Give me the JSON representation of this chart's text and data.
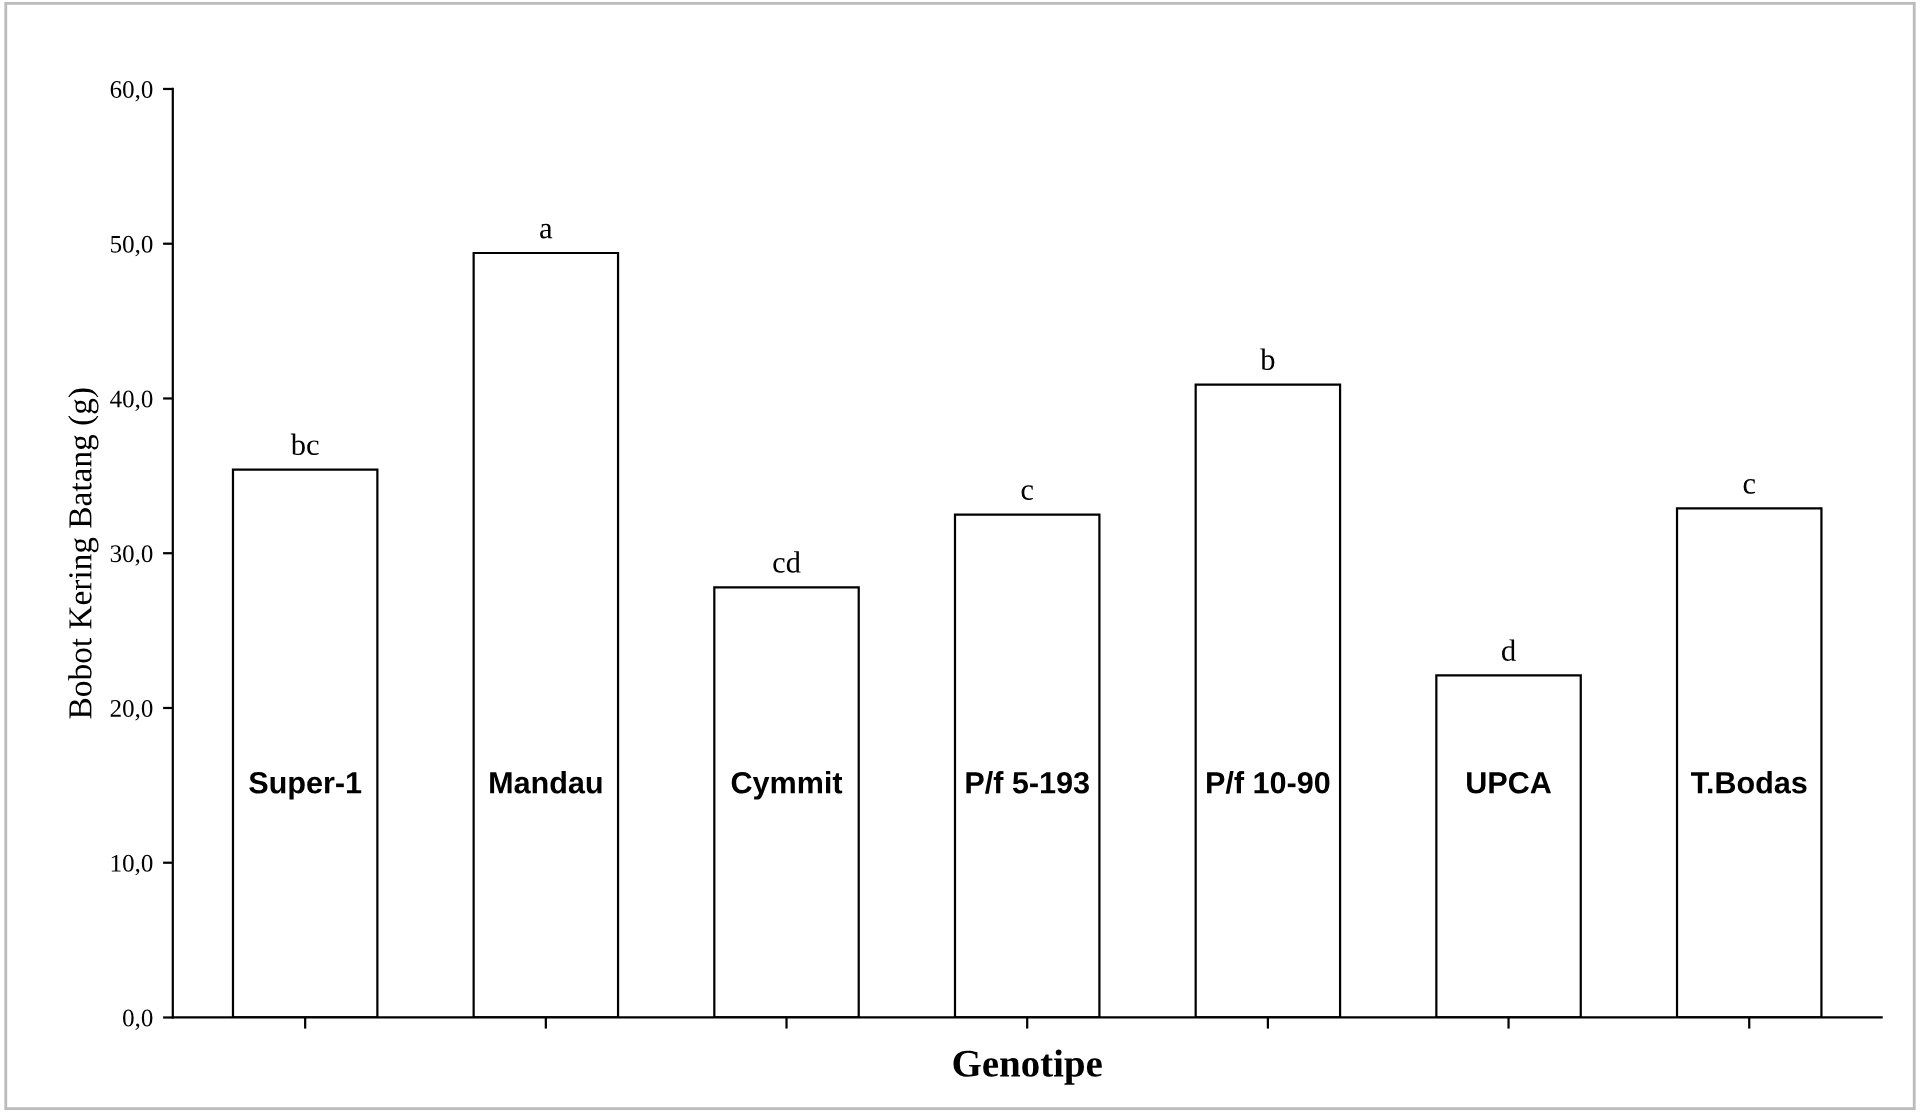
{
  "chart_data": {
    "type": "bar",
    "xlabel": "Genotipe",
    "ylabel": "Bobot Kering Batang (g)",
    "categories": [
      "Super-1",
      "Mandau",
      "Cymmit",
      "P/f 5-193",
      "P/f 10-90",
      "UPCA",
      "T.Bodas"
    ],
    "values": [
      35.4,
      49.4,
      27.8,
      32.5,
      40.9,
      22.1,
      32.9
    ],
    "color": "#ffffff",
    "ylim": [
      0,
      60
    ],
    "yticks": [
      {
        "value": 0,
        "label": "0,0"
      },
      {
        "value": 10,
        "label": "10,0"
      },
      {
        "value": 20,
        "label": "20,0"
      },
      {
        "value": 30,
        "label": "30,0"
      },
      {
        "value": 40,
        "label": "40,0"
      },
      {
        "value": 50,
        "label": "50,0"
      },
      {
        "value": 60,
        "label": "60,0"
      }
    ],
    "annotations": [
      {
        "text": "bc",
        "x": "Super-1",
        "y": 35.4
      },
      {
        "text": "a",
        "x": "Mandau",
        "y": 49.4
      },
      {
        "text": "cd",
        "x": "Cymmit",
        "y": 27.8
      },
      {
        "text": "c",
        "x": "P/f 5-193",
        "y": 32.5
      },
      {
        "text": "b",
        "x": "P/f 10-90",
        "y": 40.9
      },
      {
        "text": "d",
        "x": "UPCA",
        "y": 22.1
      },
      {
        "text": "c",
        "x": "T.Bodas",
        "y": 32.9
      }
    ],
    "grid": false,
    "legend": false
  }
}
